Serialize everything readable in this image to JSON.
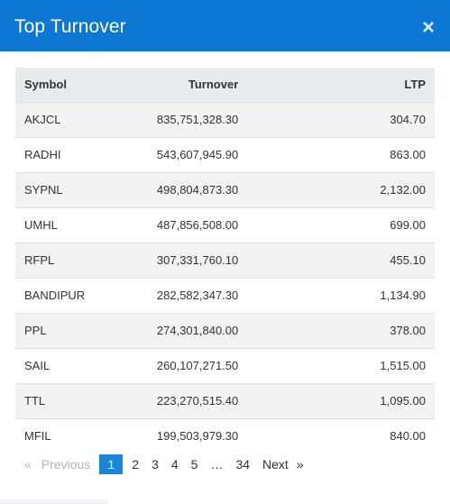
{
  "modal": {
    "title": "Top Turnover",
    "close_symbol": "×"
  },
  "table": {
    "headers": {
      "symbol": "Symbol",
      "turnover": "Turnover",
      "ltp": "LTP"
    },
    "rows": [
      {
        "symbol": "AKJCL",
        "turnover": "835,751,328.30",
        "ltp": "304.70"
      },
      {
        "symbol": "RADHI",
        "turnover": "543,607,945.90",
        "ltp": "863.00"
      },
      {
        "symbol": "SYPNL",
        "turnover": "498,804,873.30",
        "ltp": "2,132.00"
      },
      {
        "symbol": "UMHL",
        "turnover": "487,856,508.00",
        "ltp": "699.00"
      },
      {
        "symbol": "RFPL",
        "turnover": "307,331,760.10",
        "ltp": "455.10"
      },
      {
        "symbol": "BANDIPUR",
        "turnover": "282,582,347.30",
        "ltp": "1,134.90"
      },
      {
        "symbol": "PPL",
        "turnover": "274,301,840.00",
        "ltp": "378.00"
      },
      {
        "symbol": "SAIL",
        "turnover": "260,107,271.50",
        "ltp": "1,515.00"
      },
      {
        "symbol": "TTL",
        "turnover": "223,270,515.40",
        "ltp": "1,095.00"
      },
      {
        "symbol": "MFIL",
        "turnover": "199,503,979.30",
        "ltp": "840.00"
      }
    ]
  },
  "pagination": {
    "prev_arrow": "«",
    "prev_label": "Previous",
    "pages": [
      "1",
      "2",
      "3",
      "4",
      "5"
    ],
    "ellipsis": "…",
    "last_page": "34",
    "next_label": "Next",
    "next_arrow": "»",
    "current": "1"
  },
  "colors": {
    "header_bg": "#0d78d4",
    "active_page_bg": "#1a86d8",
    "table_header_bg": "#e9ecef",
    "stripe_bg": "#f2f2f2"
  }
}
